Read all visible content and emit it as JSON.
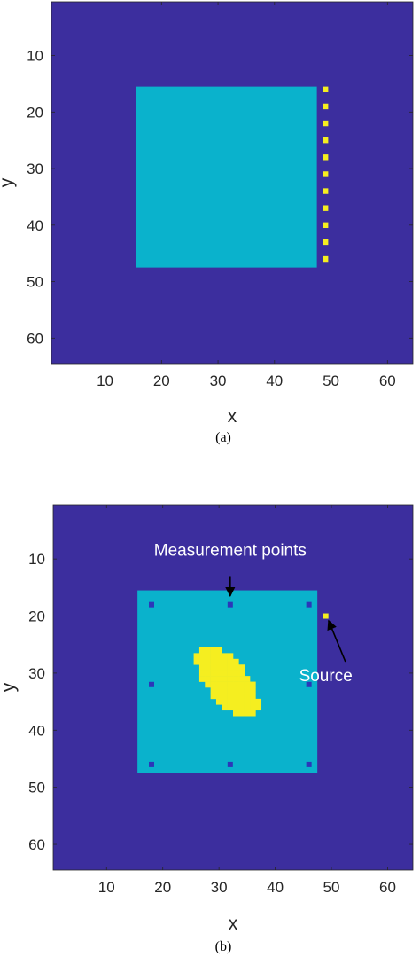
{
  "colors": {
    "background": "#3c2e9e",
    "object": "#0ab2cc",
    "inclusion": "#f5ee20",
    "measurement": "#2b37b9",
    "arrow": "#000000"
  },
  "chart_data": [
    {
      "type": "heatmap",
      "caption": "(a)",
      "xlabel": "x",
      "ylabel": "y",
      "xlim": [
        0.5,
        64.5
      ],
      "ylim": [
        0.5,
        64.5
      ],
      "y_reversed": true,
      "xticks": [
        10,
        20,
        30,
        40,
        50,
        60
      ],
      "yticks": [
        10,
        20,
        30,
        40,
        50,
        60
      ],
      "grid": false,
      "regions": [
        {
          "kind": "background",
          "value": "background",
          "x": [
            0.5,
            64.5
          ],
          "y": [
            0.5,
            64.5
          ]
        },
        {
          "kind": "square",
          "value": "object",
          "x": [
            16,
            47
          ],
          "y": [
            16,
            47
          ]
        }
      ],
      "points": {
        "value": "inclusion",
        "x": [
          49,
          49,
          49,
          49,
          49,
          49,
          49,
          49,
          49,
          49,
          49
        ],
        "y": [
          16,
          19,
          22,
          25,
          28,
          31,
          34,
          37,
          40,
          43,
          46
        ]
      }
    },
    {
      "type": "heatmap",
      "caption": "(b)",
      "xlabel": "x",
      "ylabel": "y",
      "xlim": [
        0.5,
        64.5
      ],
      "ylim": [
        0.5,
        64.5
      ],
      "y_reversed": true,
      "xticks": [
        10,
        20,
        30,
        40,
        50,
        60
      ],
      "yticks": [
        10,
        20,
        30,
        40,
        50,
        60
      ],
      "grid": false,
      "regions": [
        {
          "kind": "background",
          "value": "background",
          "x": [
            0.5,
            64.5
          ],
          "y": [
            0.5,
            64.5
          ]
        },
        {
          "kind": "square",
          "value": "object",
          "x": [
            16,
            47
          ],
          "y": [
            16,
            47
          ]
        },
        {
          "kind": "ellipse",
          "value": "inclusion",
          "center": [
            31.5,
            31.5
          ],
          "semi_axes": [
            3.6,
            7.8
          ],
          "angle_deg": 40
        }
      ],
      "points": {
        "value": "measurement",
        "x": [
          18,
          32,
          46,
          18,
          46,
          18,
          32,
          46
        ],
        "y": [
          18,
          18,
          18,
          32,
          32,
          46,
          46,
          46
        ]
      },
      "source": {
        "value": "inclusion",
        "x": 49,
        "y": 20
      },
      "annotations": [
        {
          "text": "Measurement points",
          "text_at": [
            32,
            8.5
          ],
          "arrow_from": [
            32,
            13
          ],
          "arrow_to": [
            32,
            16.5
          ]
        },
        {
          "text": "Source",
          "text_at": [
            49,
            30.5
          ],
          "arrow_from": [
            52.5,
            28
          ],
          "arrow_to": [
            49.5,
            20.8
          ]
        }
      ]
    }
  ]
}
